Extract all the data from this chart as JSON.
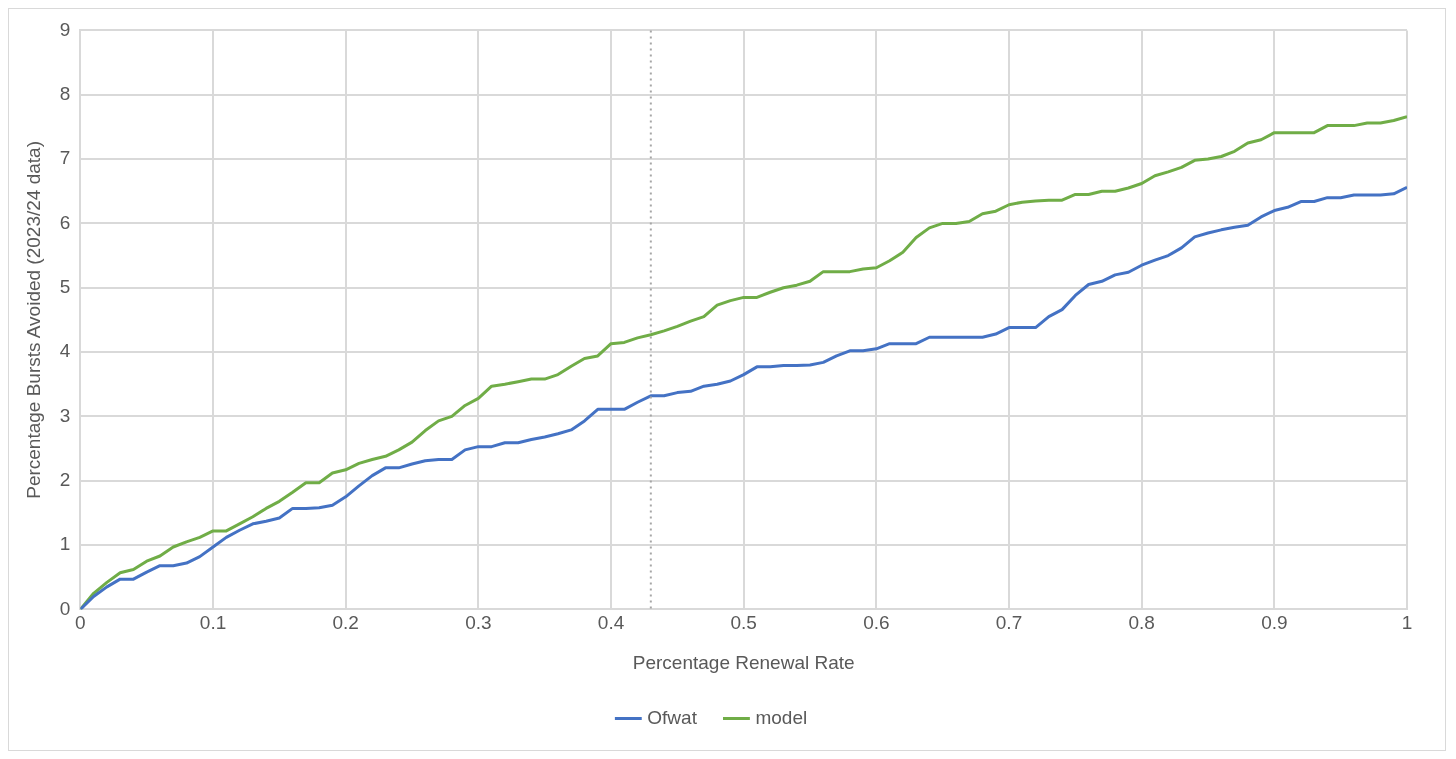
{
  "chart_data": {
    "type": "line",
    "xlabel": "Percentage Renewal Rate",
    "ylabel": "Percentage Bursts Avoided (2023/24 data)",
    "x": [
      0,
      0.01,
      0.02,
      0.03,
      0.04,
      0.05,
      0.06,
      0.07,
      0.08,
      0.09,
      0.1,
      0.11,
      0.12,
      0.13,
      0.14,
      0.15,
      0.16,
      0.17,
      0.18,
      0.19,
      0.2,
      0.21,
      0.22,
      0.23,
      0.24,
      0.25,
      0.26,
      0.27,
      0.28,
      0.29,
      0.3,
      0.31,
      0.32,
      0.33,
      0.34,
      0.35,
      0.36,
      0.37,
      0.38,
      0.39,
      0.4,
      0.41,
      0.42,
      0.43,
      0.44,
      0.45,
      0.46,
      0.47,
      0.48,
      0.49,
      0.5,
      0.51,
      0.52,
      0.53,
      0.54,
      0.55,
      0.56,
      0.57,
      0.58,
      0.59,
      0.6,
      0.61,
      0.62,
      0.63,
      0.64,
      0.65,
      0.66,
      0.67,
      0.68,
      0.69,
      0.7,
      0.71,
      0.72,
      0.73,
      0.74,
      0.75,
      0.76,
      0.77,
      0.78,
      0.79,
      0.8,
      0.81,
      0.82,
      0.83,
      0.84,
      0.85,
      0.86,
      0.87,
      0.88,
      0.89,
      0.9,
      0.91,
      0.92,
      0.93,
      0.94,
      0.95,
      0.96,
      0.97,
      0.98,
      0.99,
      1
    ],
    "series": [
      {
        "name": "Ofwat",
        "color": "#4472c4",
        "values": [
          0,
          0.2,
          0.35,
          0.47,
          0.47,
          0.58,
          0.68,
          0.68,
          0.72,
          0.82,
          0.97,
          1.12,
          1.23,
          1.33,
          1.37,
          1.42,
          1.57,
          1.57,
          1.58,
          1.62,
          1.75,
          1.92,
          2.08,
          2.2,
          2.2,
          2.26,
          2.31,
          2.33,
          2.33,
          2.48,
          2.53,
          2.53,
          2.59,
          2.59,
          2.64,
          2.68,
          2.73,
          2.79,
          2.93,
          3.11,
          3.11,
          3.11,
          3.22,
          3.32,
          3.32,
          3.37,
          3.39,
          3.47,
          3.5,
          3.55,
          3.65,
          3.77,
          3.77,
          3.79,
          3.79,
          3.8,
          3.84,
          3.94,
          4.02,
          4.02,
          4.05,
          4.13,
          4.13,
          4.13,
          4.23,
          4.23,
          4.23,
          4.23,
          4.23,
          4.28,
          4.38,
          4.38,
          4.38,
          4.55,
          4.66,
          4.88,
          5.05,
          5.1,
          5.2,
          5.24,
          5.35,
          5.43,
          5.5,
          5.62,
          5.79,
          5.85,
          5.9,
          5.94,
          5.97,
          6.1,
          6.2,
          6.25,
          6.34,
          6.34,
          6.4,
          6.4,
          6.44,
          6.44,
          6.44,
          6.46,
          6.56
        ]
      },
      {
        "name": "model",
        "color": "#70ad47",
        "values": [
          0,
          0.25,
          0.42,
          0.57,
          0.62,
          0.75,
          0.83,
          0.97,
          1.05,
          1.12,
          1.22,
          1.22,
          1.33,
          1.44,
          1.57,
          1.68,
          1.82,
          1.97,
          1.97,
          2.12,
          2.17,
          2.27,
          2.33,
          2.38,
          2.48,
          2.6,
          2.78,
          2.93,
          3.0,
          3.17,
          3.28,
          3.47,
          3.5,
          3.54,
          3.58,
          3.58,
          3.65,
          3.78,
          3.9,
          3.94,
          4.13,
          4.15,
          4.22,
          4.27,
          4.33,
          4.4,
          4.48,
          4.55,
          4.73,
          4.8,
          4.85,
          4.85,
          4.93,
          5.0,
          5.04,
          5.1,
          5.25,
          5.25,
          5.25,
          5.29,
          5.31,
          5.42,
          5.55,
          5.78,
          5.93,
          6.0,
          6.0,
          6.03,
          6.15,
          6.19,
          6.29,
          6.33,
          6.35,
          6.36,
          6.36,
          6.45,
          6.45,
          6.5,
          6.5,
          6.55,
          6.62,
          6.74,
          6.8,
          6.87,
          6.98,
          7.0,
          7.04,
          7.12,
          7.25,
          7.3,
          7.41,
          7.41,
          7.41,
          7.41,
          7.52,
          7.52,
          7.52,
          7.56,
          7.56,
          7.6,
          7.66
        ]
      }
    ],
    "xlim": [
      0,
      1
    ],
    "xticks": [
      0,
      0.1,
      0.2,
      0.3,
      0.4,
      0.5,
      0.6,
      0.7,
      0.8,
      0.9,
      1
    ],
    "ylim": [
      0,
      9
    ],
    "yticks": [
      0,
      1,
      2,
      3,
      4,
      5,
      6,
      7,
      8,
      9
    ],
    "ref_lines": [
      {
        "axis": "x",
        "value": 0.43,
        "color": "#a6a6a6",
        "line_style": "dotted"
      }
    ],
    "grid": true,
    "legend": "bottom",
    "marker": "none",
    "line_style": "solid"
  }
}
